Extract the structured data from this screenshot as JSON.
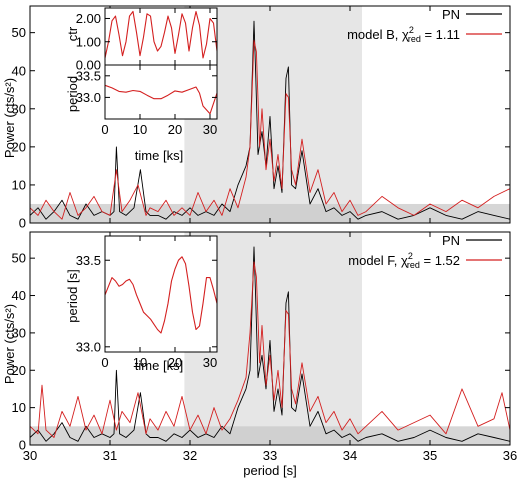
{
  "chart_data": [
    {
      "type": "line",
      "title": "",
      "xlabel": "",
      "ylabel": "Power (cts/s²)",
      "xlim": [
        30,
        36
      ],
      "ylim": [
        0,
        57
      ],
      "xticks": [
        30,
        31,
        32,
        33,
        34,
        35,
        36
      ],
      "yticks": [
        0,
        10,
        20,
        30,
        40,
        50
      ],
      "shaded_x_range": [
        31.93,
        34.15
      ],
      "noise_band_y": [
        0,
        5
      ],
      "legend_position": "top-right",
      "legend": [
        {
          "prefix": "PN",
          "sub": "",
          "suffix": "",
          "color": "#000000"
        },
        {
          "prefix": "model B, χ",
          "sub": "red",
          "suffix": " = 1.11",
          "color": "#d42020"
        }
      ],
      "series": [
        {
          "color": "#000000",
          "x": [
            30.0,
            30.1,
            30.2,
            30.3,
            30.4,
            30.5,
            30.6,
            30.7,
            30.8,
            30.9,
            31.0,
            31.05,
            31.08,
            31.12,
            31.2,
            31.3,
            31.38,
            31.45,
            31.5,
            31.6,
            31.7,
            31.8,
            31.9,
            32.0,
            32.1,
            32.2,
            32.3,
            32.4,
            32.5,
            32.6,
            32.7,
            32.75,
            32.8,
            32.82,
            32.85,
            32.9,
            32.95,
            33.0,
            33.05,
            33.1,
            33.15,
            33.2,
            33.23,
            33.27,
            33.32,
            33.4,
            33.5,
            33.6,
            33.7,
            33.8,
            33.9,
            34.0,
            34.1,
            34.2,
            34.4,
            34.6,
            34.8,
            35.0,
            35.2,
            35.4,
            35.6,
            35.8,
            36.0
          ],
          "y": [
            2,
            4,
            1,
            3,
            6,
            2,
            1,
            5,
            2,
            3,
            2,
            3,
            20,
            3,
            2,
            4,
            14,
            3,
            2,
            2,
            1,
            3,
            2,
            4,
            2,
            3,
            2,
            5,
            3,
            10,
            15,
            20,
            53,
            40,
            18,
            24,
            15,
            28,
            9,
            15,
            8,
            38,
            41,
            10,
            9,
            19,
            5,
            9,
            3,
            4,
            2,
            3,
            1,
            2,
            3,
            1,
            2,
            4,
            2,
            1,
            3,
            2,
            1
          ]
        },
        {
          "color": "#d42020",
          "x": [
            30.0,
            30.1,
            30.2,
            30.3,
            30.4,
            30.5,
            30.6,
            30.7,
            30.8,
            30.9,
            31.0,
            31.08,
            31.15,
            31.25,
            31.35,
            31.45,
            31.5,
            31.6,
            31.7,
            31.8,
            31.9,
            32.0,
            32.1,
            32.2,
            32.3,
            32.4,
            32.5,
            32.6,
            32.7,
            32.75,
            32.8,
            32.83,
            32.87,
            32.9,
            32.95,
            33.0,
            33.05,
            33.1,
            33.15,
            33.2,
            33.23,
            33.27,
            33.32,
            33.4,
            33.5,
            33.6,
            33.7,
            33.8,
            33.9,
            34.0,
            34.1,
            34.2,
            34.4,
            34.6,
            34.8,
            35.0,
            35.2,
            35.4,
            35.6,
            35.8,
            36.0
          ],
          "y": [
            4,
            2,
            6,
            3,
            1,
            8,
            2,
            4,
            7,
            3,
            2,
            14,
            3,
            6,
            10,
            2,
            4,
            3,
            6,
            2,
            4,
            2,
            8,
            3,
            6,
            2,
            9,
            4,
            12,
            20,
            48,
            45,
            20,
            30,
            14,
            22,
            11,
            18,
            9,
            34,
            33,
            14,
            10,
            22,
            8,
            14,
            5,
            8,
            3,
            6,
            2,
            3,
            7,
            4,
            2,
            5,
            3,
            6,
            4,
            7,
            9
          ]
        }
      ]
    },
    {
      "type": "line",
      "title": "",
      "xlabel": "period [s]",
      "ylabel": "Power (cts/s²)",
      "xlim": [
        30,
        36
      ],
      "ylim": [
        0,
        57
      ],
      "xticks": [
        30,
        31,
        32,
        33,
        34,
        35,
        36
      ],
      "yticks": [
        0,
        10,
        20,
        30,
        40,
        50
      ],
      "shaded_x_range": [
        31.93,
        34.15
      ],
      "noise_band_y": [
        0,
        5
      ],
      "legend_position": "top-right",
      "legend": [
        {
          "prefix": "PN",
          "sub": "",
          "suffix": "",
          "color": "#000000"
        },
        {
          "prefix": "model F, χ",
          "sub": "red",
          "suffix": " = 1.52",
          "color": "#d42020"
        }
      ],
      "series": [
        {
          "color": "#000000",
          "x": [
            30.0,
            30.1,
            30.2,
            30.3,
            30.4,
            30.5,
            30.6,
            30.7,
            30.8,
            30.9,
            31.0,
            31.05,
            31.08,
            31.12,
            31.2,
            31.3,
            31.38,
            31.45,
            31.5,
            31.6,
            31.7,
            31.8,
            31.9,
            32.0,
            32.1,
            32.2,
            32.3,
            32.4,
            32.5,
            32.6,
            32.7,
            32.75,
            32.8,
            32.82,
            32.85,
            32.9,
            32.95,
            33.0,
            33.05,
            33.1,
            33.15,
            33.2,
            33.23,
            33.27,
            33.32,
            33.4,
            33.5,
            33.6,
            33.7,
            33.8,
            33.9,
            34.0,
            34.1,
            34.2,
            34.4,
            34.6,
            34.8,
            35.0,
            35.2,
            35.4,
            35.6,
            35.8,
            36.0
          ],
          "y": [
            2,
            4,
            1,
            3,
            6,
            2,
            1,
            5,
            2,
            3,
            2,
            3,
            20,
            3,
            2,
            4,
            14,
            3,
            2,
            2,
            1,
            3,
            2,
            4,
            2,
            3,
            2,
            5,
            3,
            10,
            15,
            20,
            53,
            40,
            18,
            24,
            15,
            28,
            9,
            15,
            8,
            38,
            41,
            10,
            9,
            19,
            5,
            9,
            3,
            4,
            2,
            3,
            1,
            2,
            3,
            1,
            2,
            4,
            2,
            1,
            3,
            2,
            1
          ]
        },
        {
          "color": "#d42020",
          "x": [
            30.0,
            30.1,
            30.15,
            30.2,
            30.3,
            30.4,
            30.5,
            30.6,
            30.7,
            30.8,
            30.9,
            31.0,
            31.08,
            31.15,
            31.25,
            31.35,
            31.45,
            31.5,
            31.6,
            31.7,
            31.8,
            31.9,
            32.0,
            32.1,
            32.2,
            32.3,
            32.4,
            32.5,
            32.6,
            32.7,
            32.75,
            32.8,
            32.83,
            32.87,
            32.9,
            32.95,
            33.0,
            33.05,
            33.1,
            33.15,
            33.2,
            33.23,
            33.27,
            33.32,
            33.4,
            33.5,
            33.6,
            33.7,
            33.8,
            33.9,
            34.0,
            34.1,
            34.2,
            34.4,
            34.6,
            34.8,
            35.0,
            35.2,
            35.4,
            35.6,
            35.8,
            35.9,
            36.0
          ],
          "y": [
            5,
            3,
            16,
            4,
            2,
            9,
            5,
            13,
            4,
            8,
            3,
            12,
            4,
            9,
            6,
            14,
            3,
            7,
            4,
            9,
            5,
            13,
            4,
            8,
            3,
            10,
            4,
            7,
            12,
            18,
            30,
            49,
            45,
            22,
            32,
            16,
            24,
            12,
            20,
            10,
            36,
            35,
            15,
            11,
            22,
            9,
            13,
            6,
            9,
            4,
            7,
            3,
            5,
            9,
            4,
            6,
            8,
            3,
            15,
            5,
            7,
            14,
            4
          ]
        }
      ]
    },
    {
      "type": "line",
      "title": "",
      "xlabel": "",
      "ylabel": "ctr",
      "xlim": [
        0,
        32
      ],
      "ylim": [
        0,
        2.45
      ],
      "xticks": [
        0,
        10,
        20,
        30
      ],
      "yticks": [
        0.0,
        1.0,
        2.0
      ],
      "ytick_labels": [
        "0.00",
        "1.00",
        "2.00"
      ],
      "series": [
        {
          "color": "#d42020",
          "x": [
            0,
            1,
            2,
            3,
            4,
            5,
            6,
            7,
            8,
            9,
            10,
            11,
            12,
            13,
            14,
            15,
            16,
            17,
            18,
            19,
            20,
            21,
            22,
            23,
            24,
            25,
            26,
            27,
            28,
            29,
            30,
            31,
            32
          ],
          "y": [
            0.3,
            1.0,
            1.9,
            2.1,
            1.3,
            0.4,
            1.0,
            2.1,
            2.3,
            1.4,
            0.4,
            1.2,
            2.2,
            2.1,
            1.0,
            0.6,
            0.8,
            1.4,
            2.1,
            1.6,
            0.5,
            1.3,
            2.2,
            1.8,
            0.6,
            1.6,
            2.3,
            1.7,
            0.3,
            0.9,
            2.0,
            1.8,
            0.6
          ]
        }
      ]
    },
    {
      "type": "line",
      "title": "",
      "xlabel": "time [ks]",
      "ylabel": "period",
      "xlim": [
        0,
        32
      ],
      "ylim": [
        32.5,
        33.75
      ],
      "xticks": [
        0,
        10,
        20,
        30
      ],
      "xtick_labels": [
        "0",
        "10",
        "20",
        "30"
      ],
      "yticks": [
        33.0,
        33.5
      ],
      "ytick_labels": [
        "33.0",
        "33.5"
      ],
      "series": [
        {
          "color": "#d42020",
          "x": [
            0,
            2,
            4,
            6,
            8,
            10,
            12,
            14,
            16,
            18,
            20,
            22,
            24,
            26,
            27,
            28,
            30,
            32
          ],
          "y": [
            33.28,
            33.22,
            33.14,
            33.12,
            33.16,
            33.14,
            33.05,
            32.97,
            32.97,
            33.05,
            33.15,
            33.12,
            33.18,
            33.24,
            33.1,
            32.8,
            32.62,
            33.1
          ]
        }
      ]
    },
    {
      "type": "line",
      "title": "",
      "xlabel": "time [ks]",
      "ylabel": "period [s]",
      "xlim": [
        0,
        32
      ],
      "ylim": [
        32.97,
        33.64
      ],
      "xticks": [
        0,
        10,
        20,
        30
      ],
      "xtick_labels": [
        "0",
        "10",
        "20",
        "30"
      ],
      "yticks": [
        33.0,
        33.5
      ],
      "ytick_labels": [
        "33.0",
        "33.5"
      ],
      "series": [
        {
          "color": "#d42020",
          "x": [
            0,
            1,
            2,
            3,
            4,
            5,
            6,
            7,
            8,
            9,
            10,
            11,
            12,
            13,
            14,
            15,
            16,
            17,
            18,
            19,
            20,
            21,
            22,
            23,
            24,
            25,
            26,
            27,
            28,
            29,
            30,
            31,
            32
          ],
          "y": [
            33.3,
            33.35,
            33.4,
            33.38,
            33.35,
            33.36,
            33.38,
            33.39,
            33.36,
            33.3,
            33.25,
            33.2,
            33.18,
            33.16,
            33.13,
            33.1,
            33.08,
            33.15,
            33.25,
            33.38,
            33.45,
            33.5,
            33.52,
            33.48,
            33.35,
            33.2,
            33.1,
            33.12,
            33.25,
            33.4,
            33.4,
            33.33,
            33.25
          ]
        }
      ]
    }
  ]
}
